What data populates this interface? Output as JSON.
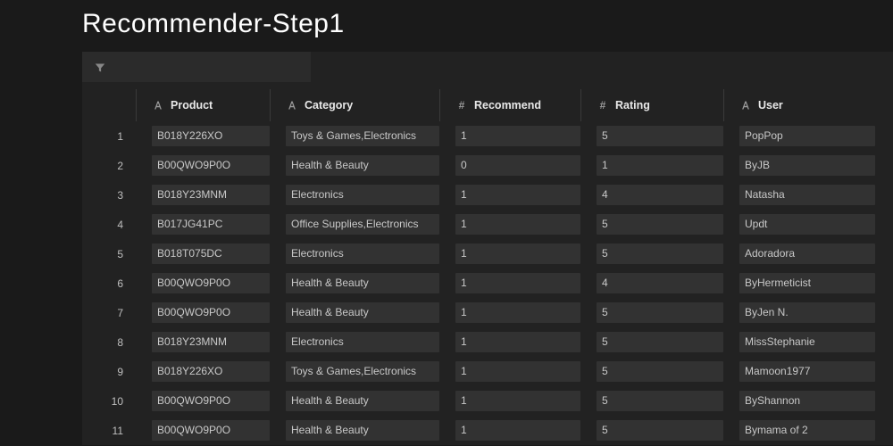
{
  "header": {
    "title": "Recommender-Step1"
  },
  "table": {
    "columns": [
      {
        "key": "product",
        "label": "Product",
        "type": "text"
      },
      {
        "key": "category",
        "label": "Category",
        "type": "text"
      },
      {
        "key": "recommend",
        "label": "Recommend",
        "type": "number"
      },
      {
        "key": "rating",
        "label": "Rating",
        "type": "number"
      },
      {
        "key": "user",
        "label": "User",
        "type": "text"
      }
    ],
    "rows": [
      {
        "idx": "1",
        "product": "B018Y226XO",
        "category": "Toys & Games,Electronics",
        "recommend": "1",
        "rating": "5",
        "user": "PopPop"
      },
      {
        "idx": "2",
        "product": "B00QWO9P0O",
        "category": "Health & Beauty",
        "recommend": "0",
        "rating": "1",
        "user": "ByJB"
      },
      {
        "idx": "3",
        "product": "B018Y23MNM",
        "category": "Electronics",
        "recommend": "1",
        "rating": "4",
        "user": "Natasha"
      },
      {
        "idx": "4",
        "product": "B017JG41PC",
        "category": "Office Supplies,Electronics",
        "recommend": "1",
        "rating": "5",
        "user": "Updt"
      },
      {
        "idx": "5",
        "product": "B018T075DC",
        "category": "Electronics",
        "recommend": "1",
        "rating": "5",
        "user": "Adoradora"
      },
      {
        "idx": "6",
        "product": "B00QWO9P0O",
        "category": "Health & Beauty",
        "recommend": "1",
        "rating": "4",
        "user": "ByHermeticist"
      },
      {
        "idx": "7",
        "product": "B00QWO9P0O",
        "category": "Health & Beauty",
        "recommend": "1",
        "rating": "5",
        "user": "ByJen N."
      },
      {
        "idx": "8",
        "product": "B018Y23MNM",
        "category": "Electronics",
        "recommend": "1",
        "rating": "5",
        "user": "MissStephanie"
      },
      {
        "idx": "9",
        "product": "B018Y226XO",
        "category": "Toys & Games,Electronics",
        "recommend": "1",
        "rating": "5",
        "user": "Mamoon1977"
      },
      {
        "idx": "10",
        "product": "B00QWO9P0O",
        "category": "Health & Beauty",
        "recommend": "1",
        "rating": "5",
        "user": "ByShannon"
      },
      {
        "idx": "11",
        "product": "B00QWO9P0O",
        "category": "Health & Beauty",
        "recommend": "1",
        "rating": "5",
        "user": "Bymama of 2"
      }
    ]
  },
  "colors": {
    "page_bg": "#1a1a1a",
    "panel_bg": "#222222",
    "filter_bg": "#2b2b2b",
    "cell_bg": "#323232",
    "text": "#c8c8c8",
    "title": "#ffffff"
  }
}
